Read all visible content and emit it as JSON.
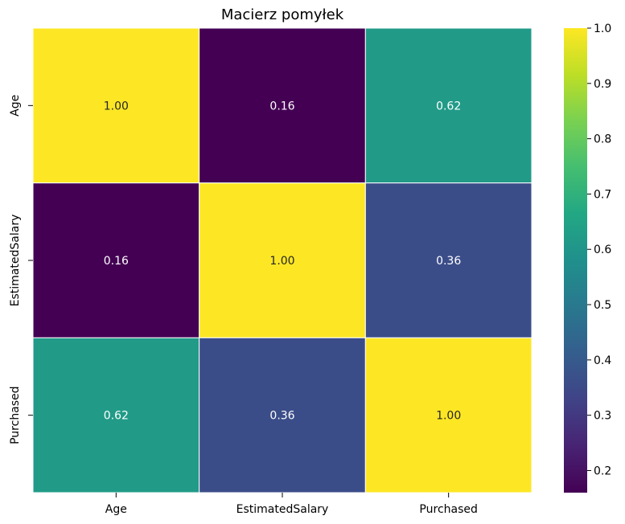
{
  "chart_data": {
    "type": "heatmap",
    "title": "Macierz pomyłek",
    "x_categories": [
      "Age",
      "EstimatedSalary",
      "Purchased"
    ],
    "y_categories": [
      "Age",
      "EstimatedSalary",
      "Purchased"
    ],
    "values": [
      [
        1.0,
        0.16,
        0.62
      ],
      [
        0.16,
        1.0,
        0.36
      ],
      [
        0.62,
        0.36,
        1.0
      ]
    ],
    "cell_labels": [
      [
        "1.00",
        "0.16",
        "0.62"
      ],
      [
        "0.16",
        "1.00",
        "0.36"
      ],
      [
        "0.62",
        "0.36",
        "1.00"
      ]
    ],
    "colormap": "viridis",
    "vmin": 0.16,
    "vmax": 1.0,
    "colorbar_ticks": [
      0.2,
      0.3,
      0.4,
      0.5,
      0.6,
      0.7,
      0.8,
      0.9,
      1.0
    ],
    "colorbar_tick_labels": [
      "0.2",
      "0.3",
      "0.4",
      "0.5",
      "0.6",
      "0.7",
      "0.8",
      "0.9",
      "1.0"
    ],
    "xlabel": "",
    "ylabel": "",
    "cell_border_color": "#ffffff",
    "text_color_dark_cells": "#ffffff",
    "text_color_light_cells": "#262626"
  }
}
